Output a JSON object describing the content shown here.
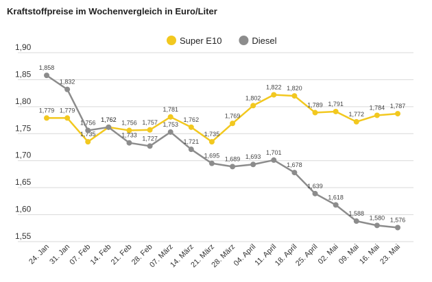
{
  "chart_data": {
    "type": "line",
    "title": "Kraftstoffpreise im Wochenvergleich in Euro/Liter",
    "categories": [
      "24. Jan",
      "31. Jan",
      "07. Feb",
      "14. Feb",
      "21. Feb",
      "28. Feb",
      "07. März",
      "14. März",
      "21. März",
      "28. März",
      "04. April",
      "11. April",
      "18. April",
      "25. April",
      "02. Mai",
      "09. Mai",
      "16. Mai",
      "23. Mai"
    ],
    "series": [
      {
        "name": "Super E10",
        "color": "#f2c81f",
        "values": [
          1.779,
          1.779,
          1.735,
          1.762,
          1.756,
          1.757,
          1.781,
          1.762,
          1.735,
          1.769,
          1.802,
          1.822,
          1.82,
          1.789,
          1.791,
          1.772,
          1.784,
          1.787
        ],
        "labels": [
          "1,779",
          "1,779",
          "1,735",
          "1,762",
          "1,756",
          "1,757",
          "1,781",
          "1,762",
          "1,735",
          "1,769",
          "1,802",
          "1,822",
          "1,820",
          "1,789",
          "1,791",
          "1,772",
          "1,784",
          "1,787"
        ]
      },
      {
        "name": "Diesel",
        "color": "#8c8c8c",
        "values": [
          1.858,
          1.832,
          1.756,
          1.762,
          1.733,
          1.727,
          1.753,
          1.721,
          1.695,
          1.689,
          1.693,
          1.701,
          1.678,
          1.639,
          1.618,
          1.588,
          1.58,
          1.576
        ],
        "labels": [
          "1,858",
          "1,832",
          "1,756",
          "1,762",
          "1,733",
          "1,727",
          "1,753",
          "1,721",
          "1,695",
          "1,689",
          "1,693",
          "1,701",
          "1,678",
          "1,639",
          "1,618",
          "1,588",
          "1,580",
          "1,576"
        ]
      }
    ],
    "yticks": [
      1.55,
      1.6,
      1.65,
      1.7,
      1.75,
      1.8,
      1.85,
      1.9
    ],
    "ytick_labels": [
      "1,55",
      "1,60",
      "1,65",
      "1,70",
      "1,75",
      "1,80",
      "1,85",
      "1,90"
    ],
    "ylim": [
      1.55,
      1.9
    ],
    "grid": "horizontal",
    "legend": "top-center",
    "xlabel": "",
    "ylabel": ""
  }
}
